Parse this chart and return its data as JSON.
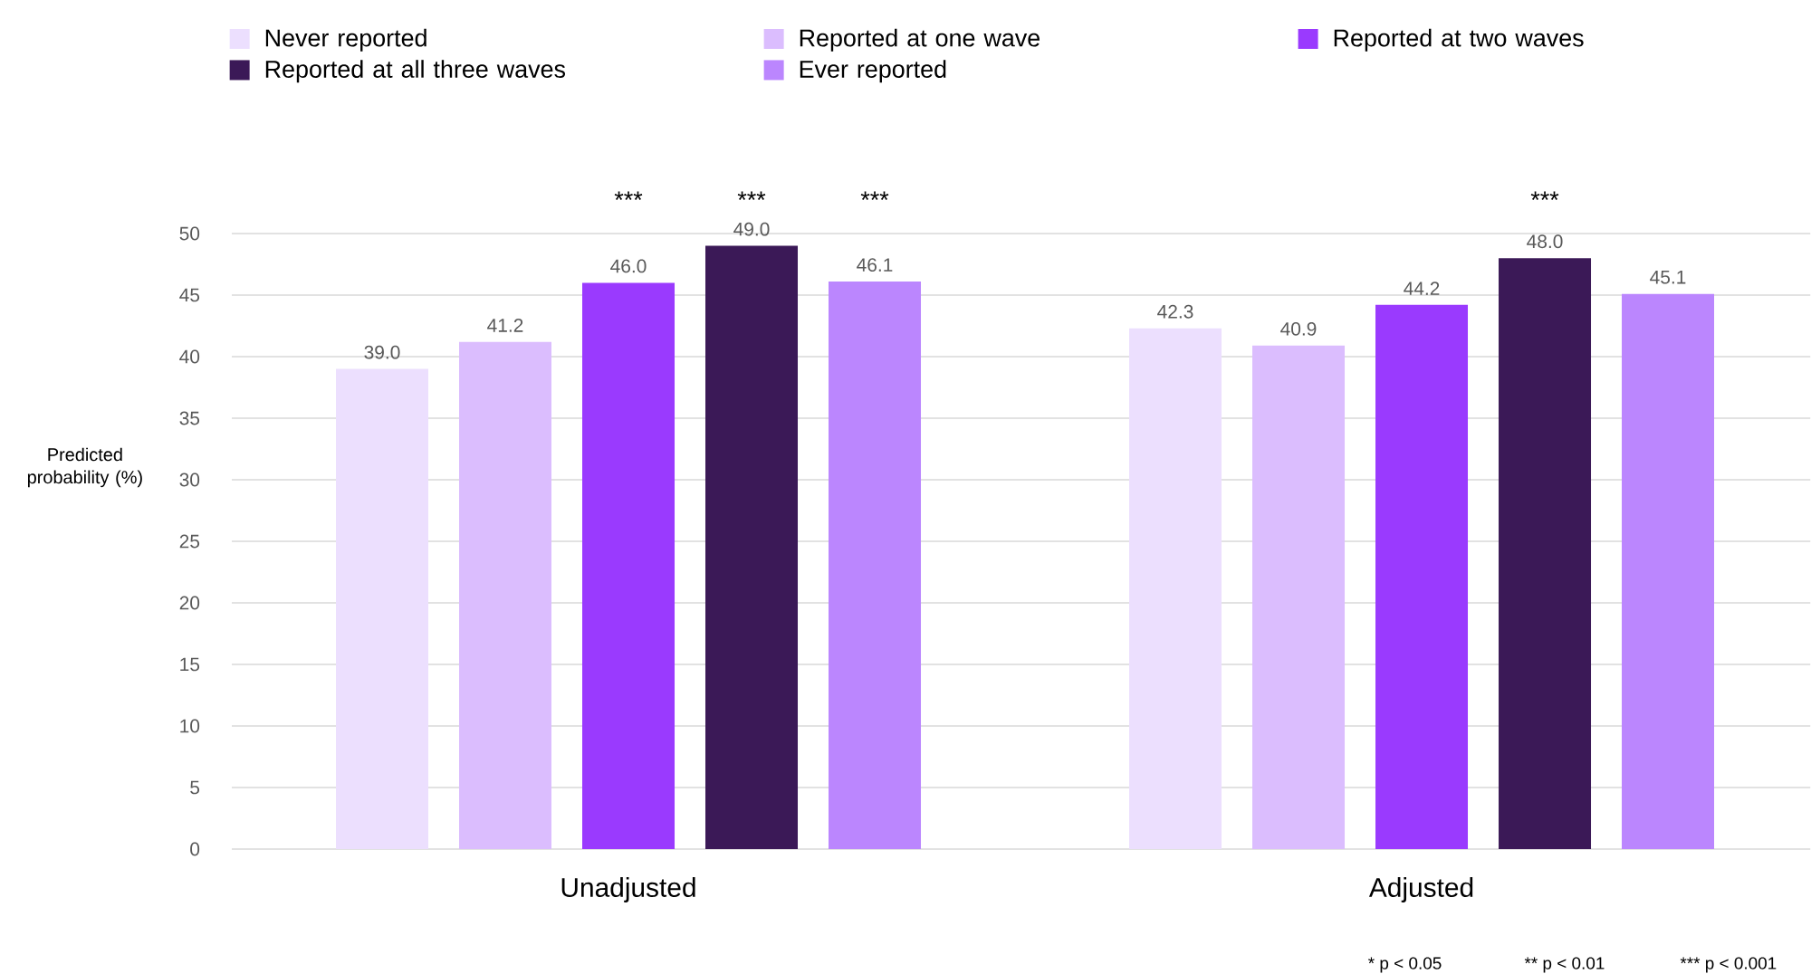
{
  "chart_data": {
    "type": "bar",
    "categories": [
      "Unadjusted",
      "Adjusted"
    ],
    "ylabel": "Predicted probability (%)",
    "series": [
      {
        "name": "Never reported",
        "color": "#ecdffe",
        "values": [
          39.0,
          42.3
        ],
        "value_labels": [
          "39.0",
          "42.3"
        ]
      },
      {
        "name": "Reported at one wave",
        "color": "#dbbdfe",
        "values": [
          41.2,
          40.9
        ],
        "value_labels": [
          "41.2",
          "40.9"
        ]
      },
      {
        "name": "Reported at two waves",
        "color": "#9a3afe",
        "values": [
          46.0,
          44.2
        ],
        "value_labels": [
          "46.0",
          "44.2"
        ]
      },
      {
        "name": "Reported at all three waves",
        "color": "#3b1957",
        "values": [
          49.0,
          48.0
        ],
        "value_labels": [
          "49.0",
          "48.0"
        ]
      },
      {
        "name": "Ever reported",
        "color": "#bb86fe",
        "values": [
          46.1,
          45.1
        ],
        "value_labels": [
          "46.1",
          "45.1"
        ]
      }
    ],
    "ylim": [
      0,
      50
    ],
    "yticks": [
      0,
      5,
      10,
      15,
      20,
      25,
      30,
      35,
      40,
      45,
      50
    ],
    "grid": "y",
    "legend": "top",
    "annotations": [
      "***",
      "***",
      "***",
      "***",
      "* p < 0.05",
      "** p < 0.01",
      "*** p < 0.001"
    ]
  }
}
